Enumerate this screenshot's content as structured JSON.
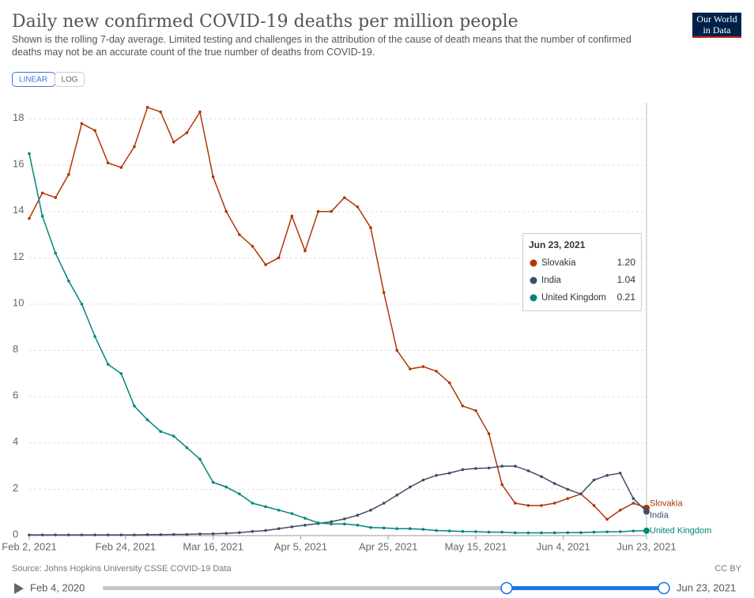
{
  "chart_data": {
    "type": "line",
    "title": "Daily new confirmed COVID-19 deaths per million people",
    "subtitle": "Shown is the rolling 7-day average. Limited testing and challenges in the attribution of the cause of death means that the number of confirmed deaths may not be an accurate count of the true number of deaths from COVID-19.",
    "logo": [
      "Our World",
      "in Data"
    ],
    "scale_buttons": [
      "LINEAR",
      "LOG"
    ],
    "log_scale": false,
    "grid": true,
    "x": [
      "2021-02-02",
      "2021-02-05",
      "2021-02-08",
      "2021-02-11",
      "2021-02-14",
      "2021-02-17",
      "2021-02-20",
      "2021-02-23",
      "2021-02-26",
      "2021-03-01",
      "2021-03-04",
      "2021-03-07",
      "2021-03-10",
      "2021-03-13",
      "2021-03-16",
      "2021-03-19",
      "2021-03-22",
      "2021-03-25",
      "2021-03-28",
      "2021-03-31",
      "2021-04-03",
      "2021-04-06",
      "2021-04-09",
      "2021-04-12",
      "2021-04-15",
      "2021-04-18",
      "2021-04-21",
      "2021-04-24",
      "2021-04-27",
      "2021-04-30",
      "2021-05-03",
      "2021-05-06",
      "2021-05-09",
      "2021-05-12",
      "2021-05-15",
      "2021-05-18",
      "2021-05-21",
      "2021-05-24",
      "2021-05-27",
      "2021-05-30",
      "2021-06-02",
      "2021-06-05",
      "2021-06-08",
      "2021-06-11",
      "2021-06-14",
      "2021-06-17",
      "2021-06-20",
      "2021-06-23"
    ],
    "xlim": [
      "2021-02-02",
      "2021-06-23"
    ],
    "xticks": [
      {
        "value": "2021-02-02",
        "label": "Feb 2, 2021"
      },
      {
        "value": "2021-02-24",
        "label": "Feb 24, 2021"
      },
      {
        "value": "2021-03-16",
        "label": "Mar 16, 2021"
      },
      {
        "value": "2021-04-05",
        "label": "Apr 5, 2021"
      },
      {
        "value": "2021-04-25",
        "label": "Apr 25, 2021"
      },
      {
        "value": "2021-05-15",
        "label": "May 15, 2021"
      },
      {
        "value": "2021-06-04",
        "label": "Jun 4, 2021"
      },
      {
        "value": "2021-06-23",
        "label": "Jun 23, 2021"
      }
    ],
    "ylim": [
      0,
      18.7
    ],
    "yticks": [
      0,
      2,
      4,
      6,
      8,
      10,
      12,
      14,
      16,
      18
    ],
    "series": [
      {
        "name": "Slovakia",
        "color": "#b13507",
        "values": [
          13.7,
          14.8,
          14.6,
          15.6,
          17.8,
          17.5,
          16.1,
          15.9,
          16.8,
          18.5,
          18.3,
          17.0,
          17.4,
          18.3,
          15.5,
          14.0,
          13.0,
          12.5,
          11.7,
          12.0,
          13.8,
          12.3,
          14.0,
          14.0,
          14.6,
          14.2,
          13.3,
          10.5,
          8.0,
          7.2,
          7.3,
          7.1,
          6.6,
          5.6,
          5.4,
          4.4,
          2.2,
          1.4,
          1.3,
          1.3,
          1.4,
          1.6,
          1.8,
          1.3,
          0.7,
          1.1,
          1.4,
          1.2
        ]
      },
      {
        "name": "India",
        "color": "#3c4e66",
        "values": [
          0.03,
          0.03,
          0.03,
          0.03,
          0.03,
          0.03,
          0.03,
          0.03,
          0.03,
          0.04,
          0.04,
          0.05,
          0.05,
          0.07,
          0.08,
          0.1,
          0.13,
          0.18,
          0.22,
          0.3,
          0.38,
          0.45,
          0.52,
          0.6,
          0.72,
          0.88,
          1.1,
          1.4,
          1.75,
          2.1,
          2.4,
          2.6,
          2.7,
          2.85,
          2.9,
          2.92,
          3.0,
          3.0,
          2.8,
          2.55,
          2.25,
          2.0,
          1.8,
          2.4,
          2.6,
          2.7,
          1.6,
          1.04
        ]
      },
      {
        "name": "United Kingdom",
        "color": "#00857e",
        "values": [
          16.5,
          13.8,
          12.2,
          11.0,
          10.0,
          8.6,
          7.4,
          7.0,
          5.6,
          5.0,
          4.5,
          4.3,
          3.8,
          3.3,
          2.3,
          2.1,
          1.8,
          1.4,
          1.25,
          1.1,
          0.95,
          0.75,
          0.55,
          0.5,
          0.5,
          0.45,
          0.35,
          0.33,
          0.3,
          0.3,
          0.27,
          0.22,
          0.2,
          0.18,
          0.17,
          0.15,
          0.15,
          0.12,
          0.12,
          0.12,
          0.12,
          0.13,
          0.13,
          0.15,
          0.16,
          0.17,
          0.2,
          0.21
        ]
      }
    ],
    "tooltip": {
      "date": "Jun 23, 2021",
      "value_labels": [
        "1.20",
        "1.04",
        "0.21"
      ]
    },
    "source": "Source: Johns Hopkins University CSSE COVID-19 Data",
    "license": "CC BY",
    "timeline": {
      "start": "Feb 4, 2020",
      "end": "Jun 23, 2021"
    }
  }
}
